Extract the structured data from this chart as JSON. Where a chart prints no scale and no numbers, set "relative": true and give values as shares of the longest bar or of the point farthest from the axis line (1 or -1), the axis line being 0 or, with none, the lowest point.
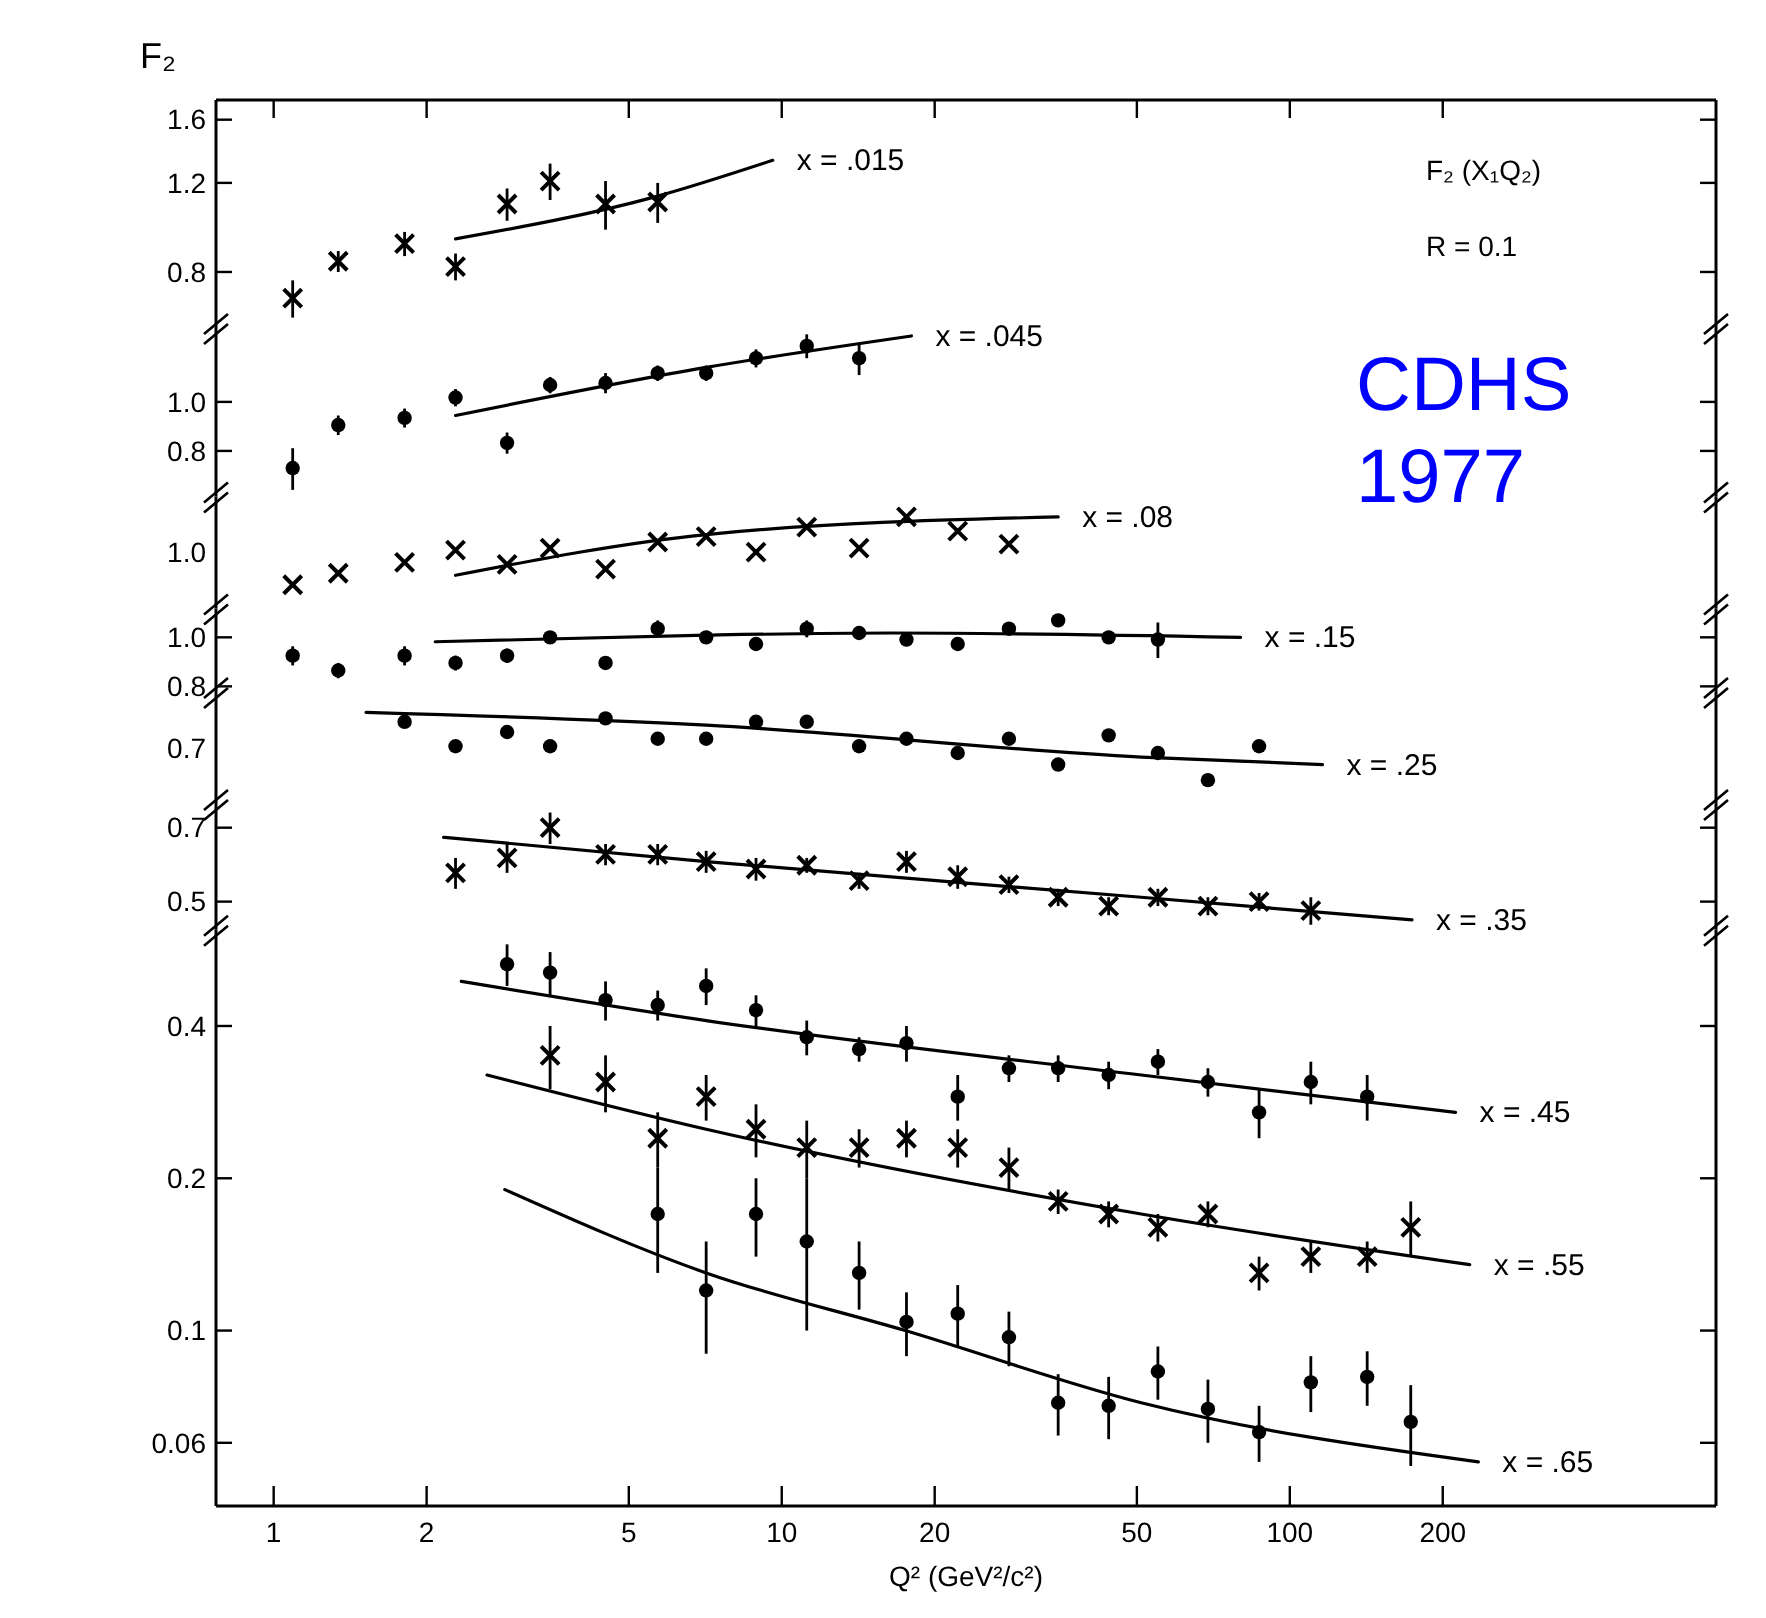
{
  "chart_data": [
    {
      "type": "scatter",
      "ylabel": "F₂",
      "annotations": [
        "F₂ (X₁Q₂)",
        "R = 0.1",
        "CDHS 1977"
      ],
      "xlim": [
        0.77,
        690
      ],
      "xticks": [
        1,
        2,
        5,
        10,
        20,
        50,
        100,
        200
      ],
      "ylim": [
        0.62,
        1.75
      ],
      "yticks": [
        0.8,
        1.2,
        1.6
      ],
      "log": "xy",
      "tick_labels": "y",
      "series": [
        {
          "marker": "cross",
          "color": "#000000",
          "x": [
            1.09,
            1.34,
            1.81,
            2.28,
            2.88,
            3.5,
            4.5,
            5.7
          ],
          "values": [
            0.71,
            0.84,
            0.91,
            0.82,
            1.09,
            1.21,
            1.09,
            1.1
          ],
          "errors": [
            0.06,
            0.04,
            0.05,
            0.05,
            0.08,
            0.1,
            0.12,
            0.1
          ]
        },
        {
          "type": "line",
          "name": "x = .015",
          "color": "#000000",
          "x": [
            2.28,
            5.7,
            9.6
          ],
          "values": [
            0.93,
            1.13,
            1.33
          ]
        }
      ]
    },
    {
      "type": "scatter",
      "xlim": [
        0.77,
        690
      ],
      "xticks": [
        1,
        2,
        5,
        10,
        20,
        50,
        100,
        200
      ],
      "ylim": [
        0.65,
        1.4
      ],
      "yticks": [
        0.8,
        {
          "value": 1,
          "label": "1.0"
        }
      ],
      "log": "xy",
      "tick_labels": "y",
      "series": [
        {
          "marker": "circle",
          "color": "#000000",
          "x": [
            1.09,
            1.34,
            1.81,
            2.28,
            2.88,
            3.5,
            4.5,
            5.7,
            7.1,
            8.9,
            11.2,
            14.2
          ],
          "values": [
            0.74,
            0.9,
            0.93,
            1.02,
            0.83,
            1.08,
            1.09,
            1.14,
            1.14,
            1.22,
            1.29,
            1.22
          ],
          "errors": [
            0.07,
            0.04,
            0.04,
            0.04,
            0.04,
            0.04,
            0.05,
            0.04,
            0.04,
            0.05,
            0.07,
            0.09
          ]
        },
        {
          "type": "line",
          "name": "x = .045",
          "color": "#000000",
          "x": [
            2.28,
            7.1,
            18
          ],
          "values": [
            0.94,
            1.17,
            1.35
          ]
        }
      ]
    },
    {
      "type": "scatter",
      "relative": true,
      "annotations": [
        "1.0"
      ],
      "xlim": [
        0.77,
        690
      ],
      "xticks": [
        1,
        2,
        5,
        10,
        20,
        50,
        100,
        200
      ],
      "log": "x",
      "tick_labels": "y",
      "series": [
        {
          "marker": "cross",
          "color": "#000000",
          "x": [
            1.09,
            1.34,
            1.81,
            2.28,
            2.88,
            3.5,
            4.5,
            5.7,
            7.1,
            8.9,
            11.2,
            14.2,
            17.6,
            22.2,
            28
          ],
          "values": [
            0,
            0.17,
            0.33,
            0.51,
            0.3,
            0.54,
            0.23,
            0.63,
            0.71,
            0.48,
            0.85,
            0.54,
            1,
            0.79,
            0.6
          ]
        },
        {
          "type": "line",
          "name": "x = .08",
          "color": "#000000",
          "x": [
            2.28,
            7.1,
            35
          ],
          "values": [
            0.14,
            0.74,
            1
          ]
        }
      ]
    },
    {
      "type": "scatter",
      "xlim": [
        0.77,
        690
      ],
      "xticks": [
        1,
        2,
        5,
        10,
        20,
        50,
        100,
        200
      ],
      "ylim": [
        0.78,
        1.14
      ],
      "yticks": [
        0.8,
        {
          "value": 1,
          "label": "1.0"
        }
      ],
      "log": "xy",
      "tick_labels": "y",
      "series": [
        {
          "marker": "circle",
          "color": "#000000",
          "x": [
            1.09,
            1.34,
            1.81,
            2.28,
            2.88,
            3.5,
            4.5,
            5.7,
            7.1,
            8.9,
            11.2,
            14.2,
            17.6,
            22.2,
            28,
            35,
            44,
            55
          ],
          "values": [
            0.92,
            0.86,
            0.92,
            0.89,
            0.92,
            1.0,
            0.89,
            1.04,
            1.0,
            0.97,
            1.04,
            1.02,
            0.99,
            0.97,
            1.04,
            1.08,
            1.0,
            0.99
          ],
          "errors": [
            0.04,
            0.03,
            0.04,
            0.03,
            0.03,
            0.02,
            0.02,
            0.04,
            0.03,
            0.03,
            0.04,
            0.03,
            0.02,
            0.03,
            0.03,
            0.03,
            0.03,
            0.08
          ]
        },
        {
          "type": "line",
          "name": "x = .15",
          "color": "#000000",
          "x": [
            2.08,
            7.1,
            16.4,
            80
          ],
          "values": [
            0.98,
            1.01,
            1.02,
            1.0
          ]
        }
      ]
    },
    {
      "type": "scatter",
      "relative": true,
      "annotations": [
        "0.7"
      ],
      "xlim": [
        0.77,
        690
      ],
      "xticks": [
        1,
        2,
        5,
        10,
        20,
        50,
        100,
        200
      ],
      "log": "x",
      "tick_labels": "y",
      "series": [
        {
          "marker": "circle",
          "color": "#000000",
          "x": [
            1.81,
            2.28,
            2.88,
            3.5,
            4.5,
            5.7,
            7.1,
            8.9,
            11.2,
            14.2,
            17.6,
            22.2,
            28,
            35,
            44,
            55,
            69,
            87
          ],
          "values": [
            0.86,
            0.5,
            0.71,
            0.5,
            0.91,
            0.61,
            0.61,
            0.86,
            0.86,
            0.5,
            0.61,
            0.4,
            0.61,
            0.23,
            0.66,
            0.4,
            0,
            0.5
          ]
        },
        {
          "type": "line",
          "name": "x = .25",
          "color": "#000000",
          "x": [
            1.52,
            7.1,
            51,
            116
          ],
          "values": [
            1,
            0.81,
            0.34,
            0.23
          ]
        }
      ]
    },
    {
      "type": "scatter",
      "xlim": [
        0.77,
        690
      ],
      "xticks": [
        1,
        2,
        5,
        10,
        20,
        50,
        100,
        200
      ],
      "ylim": [
        0.44,
        0.78
      ],
      "yticks": [
        0.5,
        0.7
      ],
      "log": "xy",
      "tick_labels": "y",
      "series": [
        {
          "marker": "cross",
          "color": "#000000",
          "x": [
            2.28,
            2.88,
            3.5,
            4.5,
            5.7,
            7.1,
            8.9,
            11.2,
            14.2,
            17.6,
            22.2,
            28,
            35,
            44,
            55,
            69,
            87,
            110
          ],
          "values": [
            0.57,
            0.61,
            0.7,
            0.62,
            0.62,
            0.6,
            0.58,
            0.59,
            0.55,
            0.6,
            0.56,
            0.54,
            0.51,
            0.49,
            0.51,
            0.49,
            0.5,
            0.48
          ],
          "errors": [
            0.04,
            0.04,
            0.05,
            0.03,
            0.03,
            0.03,
            0.03,
            0.02,
            0.02,
            0.03,
            0.03,
            0.02,
            0.02,
            0.02,
            0.02,
            0.02,
            0.02,
            0.03
          ]
        },
        {
          "type": "line",
          "name": "x = .35",
          "color": "#000000",
          "x": [
            2.16,
            7.1,
            51,
            174
          ],
          "values": [
            0.67,
            0.6,
            0.51,
            0.46
          ]
        }
      ]
    },
    {
      "type": "scatter",
      "xlabel": "Q² (GeV²/c²)",
      "xlim": [
        0.77,
        690
      ],
      "xticks": [
        1,
        2,
        5,
        10,
        20,
        50,
        100,
        200
      ],
      "ylim": [
        0.045,
        0.62
      ],
      "yticks": [
        0.4,
        0.2,
        0.1,
        0.06
      ],
      "log": "xy",
      "series": [
        {
          "marker": "circle",
          "color": "#000000",
          "x": [
            2.88,
            3.5,
            4.5,
            5.7,
            7.1,
            8.9,
            11.2,
            14.2,
            17.6,
            22.2,
            28,
            35,
            44,
            55,
            69,
            87,
            110,
            142
          ],
          "values": [
            0.53,
            0.51,
            0.45,
            0.44,
            0.48,
            0.43,
            0.38,
            0.36,
            0.37,
            0.29,
            0.33,
            0.33,
            0.32,
            0.34,
            0.31,
            0.27,
            0.31,
            0.29
          ],
          "errors": [
            0.05,
            0.05,
            0.04,
            0.03,
            0.04,
            0.03,
            0.03,
            0.02,
            0.03,
            0.03,
            0.02,
            0.02,
            0.02,
            0.02,
            0.02,
            0.03,
            0.03,
            0.03
          ]
        },
        {
          "type": "line",
          "name": "x = .45",
          "color": "#000000",
          "x": [
            2.34,
            7.1,
            51,
            212
          ],
          "values": [
            0.49,
            0.41,
            0.32,
            0.27
          ]
        },
        {
          "marker": "cross",
          "color": "#000000",
          "x": [
            3.5,
            4.5,
            5.7,
            7.1,
            8.9,
            11.2,
            14.2,
            17.6,
            22.2,
            28,
            35,
            44,
            55,
            69,
            87,
            110,
            142,
            173
          ],
          "values": [
            0.35,
            0.31,
            0.24,
            0.29,
            0.25,
            0.23,
            0.23,
            0.24,
            0.23,
            0.21,
            0.18,
            0.17,
            0.16,
            0.17,
            0.13,
            0.14,
            0.14,
            0.16
          ],
          "errors": [
            0.05,
            0.04,
            0.03,
            0.03,
            0.03,
            0.03,
            0.02,
            0.02,
            0.02,
            0.02,
            0.01,
            0.01,
            0.01,
            0.01,
            0.01,
            0.01,
            0.01,
            0.02
          ]
        },
        {
          "type": "line",
          "name": "x = .55",
          "color": "#000000",
          "x": [
            2.63,
            7.1,
            51,
            226
          ],
          "values": [
            0.32,
            0.25,
            0.17,
            0.135
          ]
        },
        {
          "marker": "circle",
          "color": "#000000",
          "x": [
            5.7,
            7.1,
            8.9,
            11.2,
            14.2,
            17.6,
            22.2,
            28,
            35,
            44,
            55,
            69,
            87,
            110,
            142,
            173
          ],
          "values": [
            0.17,
            0.12,
            0.17,
            0.15,
            0.13,
            0.104,
            0.108,
            0.097,
            0.072,
            0.071,
            0.083,
            0.07,
            0.063,
            0.079,
            0.081,
            0.066
          ],
          "errors": [
            0.04,
            0.03,
            0.03,
            0.05,
            0.02,
            0.015,
            0.015,
            0.012,
            0.01,
            0.01,
            0.01,
            0.01,
            0.008,
            0.01,
            0.01,
            0.012
          ]
        },
        {
          "type": "line",
          "name": "x = .65",
          "color": "#000000",
          "x": [
            2.85,
            7.1,
            17.5,
            51,
            235
          ],
          "values": [
            0.19,
            0.13,
            0.1,
            0.072,
            0.055
          ]
        }
      ]
    }
  ]
}
